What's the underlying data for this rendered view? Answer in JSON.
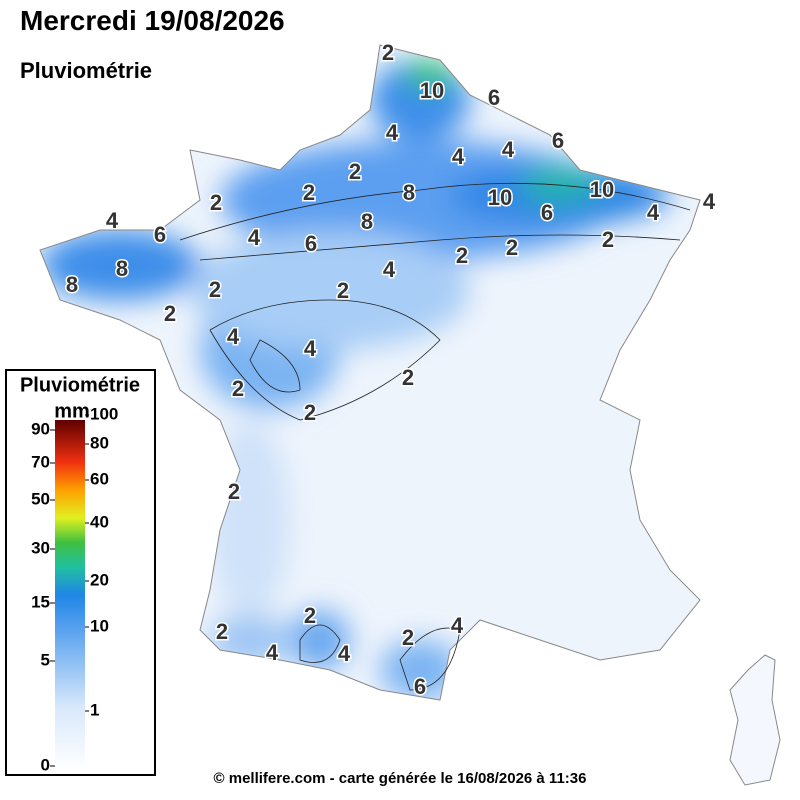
{
  "header": {
    "title": "Mercredi 19/08/2026",
    "subtitle": "Pluviométrie"
  },
  "legend": {
    "title": "Pluviométrie",
    "unit": "mm",
    "left_ticks": [
      90,
      70,
      50,
      30,
      15,
      5,
      0
    ],
    "right_ticks": [
      100,
      80,
      60,
      40,
      20,
      10,
      1
    ]
  },
  "contour_labels": [
    2,
    10,
    6,
    4,
    6,
    4,
    4,
    2,
    2,
    8,
    10,
    10,
    6,
    4,
    4,
    2,
    4,
    6,
    4,
    6,
    8,
    2,
    2,
    2,
    8,
    4,
    8,
    2,
    2,
    2,
    4,
    4,
    2,
    2,
    2,
    2,
    2,
    2,
    4,
    4,
    2,
    4,
    6
  ],
  "footer": "© mellifere.com - carte générée le 16/08/2026 à 11:36"
}
